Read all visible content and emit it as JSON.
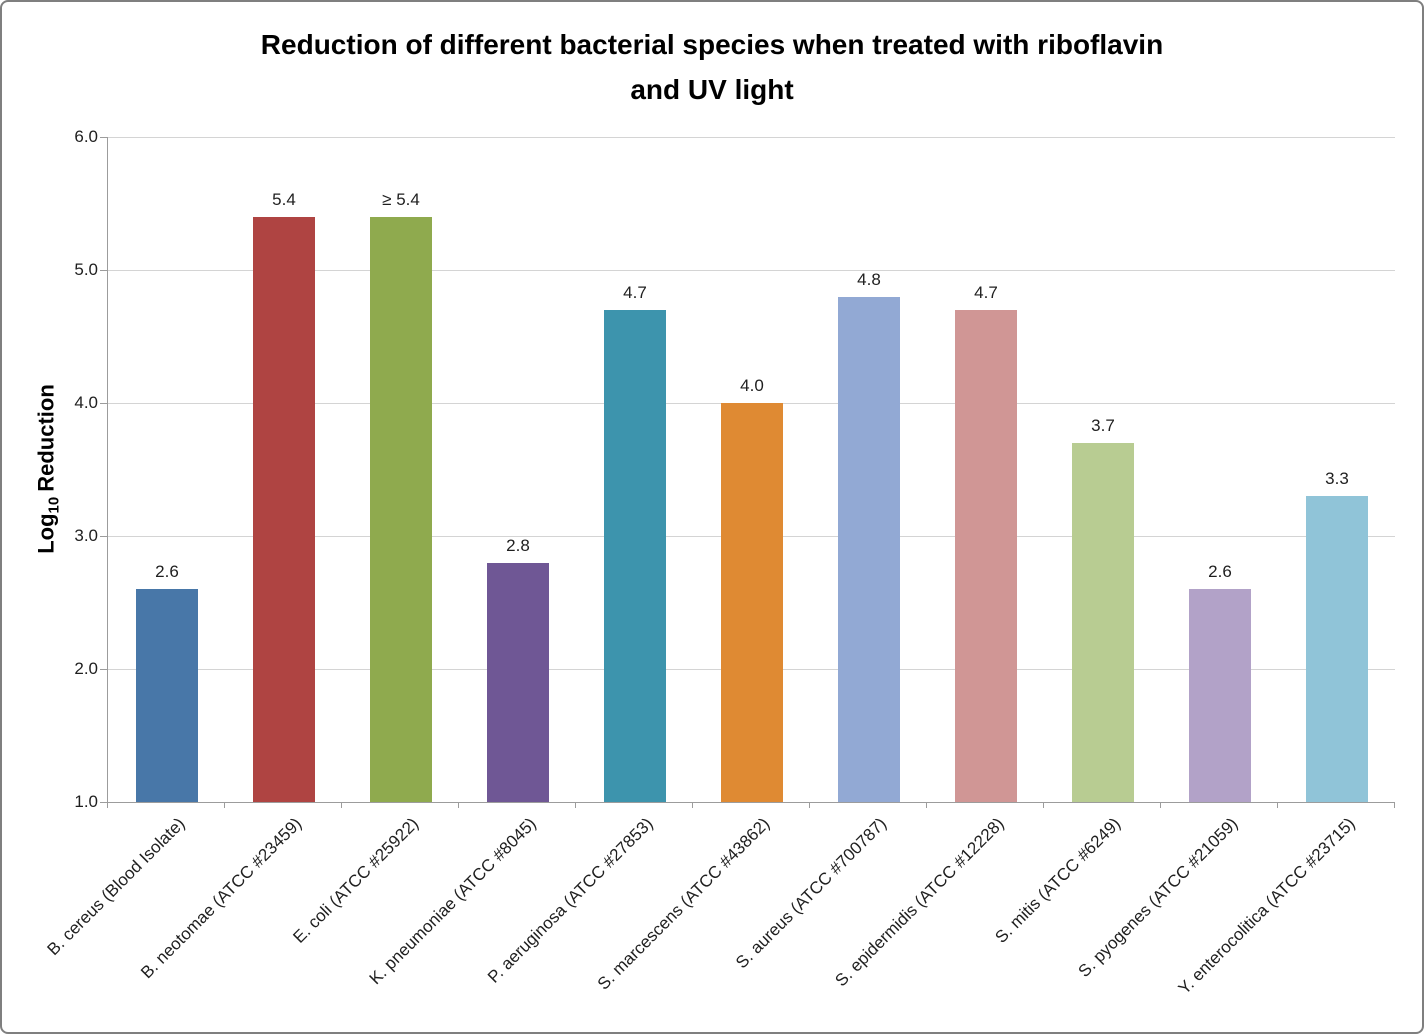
{
  "figure": {
    "background": "#ffffff",
    "border_color": "#7f7f7f"
  },
  "chart_data": {
    "type": "bar",
    "title": "Reduction of different bacterial species when treated with riboflavin and UV light",
    "title_line1": "Reduction of different bacterial species when treated with riboflavin",
    "title_line2": "and UV light",
    "ylabel": "Log10 Reduction",
    "ylabel_prefix": "Log",
    "ylabel_sub": "10",
    "ylabel_suffix": "Reduction",
    "xlabel": "",
    "ylim": [
      1.0,
      6.0
    ],
    "y_ticks": [
      "1.0",
      "2.0",
      "3.0",
      "4.0",
      "5.0",
      "6.0"
    ],
    "grid": true,
    "legend": false,
    "categories": [
      "B. cereus (Blood Isolate)",
      "B. neotomae (ATCC #23459)",
      "E. coli (ATCC #25922)",
      "K. pneumoniae (ATCC #8045)",
      "P. aeruginosa (ATCC #27853)",
      "S. marcescens (ATCC #43862)",
      "S. aureus (ATCC #700787)",
      "S. epidermidis (ATCC #12228)",
      "S. mitis (ATCC #6249)",
      "S. pyogenes (ATCC #21059)",
      "Y. enterocolitica (ATCC #23715)"
    ],
    "values": [
      2.6,
      5.4,
      5.4,
      2.8,
      4.7,
      4.0,
      4.8,
      4.7,
      3.7,
      2.6,
      3.3
    ],
    "value_labels": [
      "2.6",
      "5.4",
      "≥ 5.4",
      "2.8",
      "4.7",
      "4.0",
      "4.8",
      "4.7",
      "3.7",
      "2.6",
      "3.3"
    ],
    "colors": [
      "#4877A8",
      "#AF4442",
      "#8FAA4E",
      "#6F5795",
      "#3D94AD",
      "#DF8A33",
      "#92A9D4",
      "#D09695",
      "#B8CC92",
      "#B2A2C8",
      "#90C4D8"
    ]
  }
}
